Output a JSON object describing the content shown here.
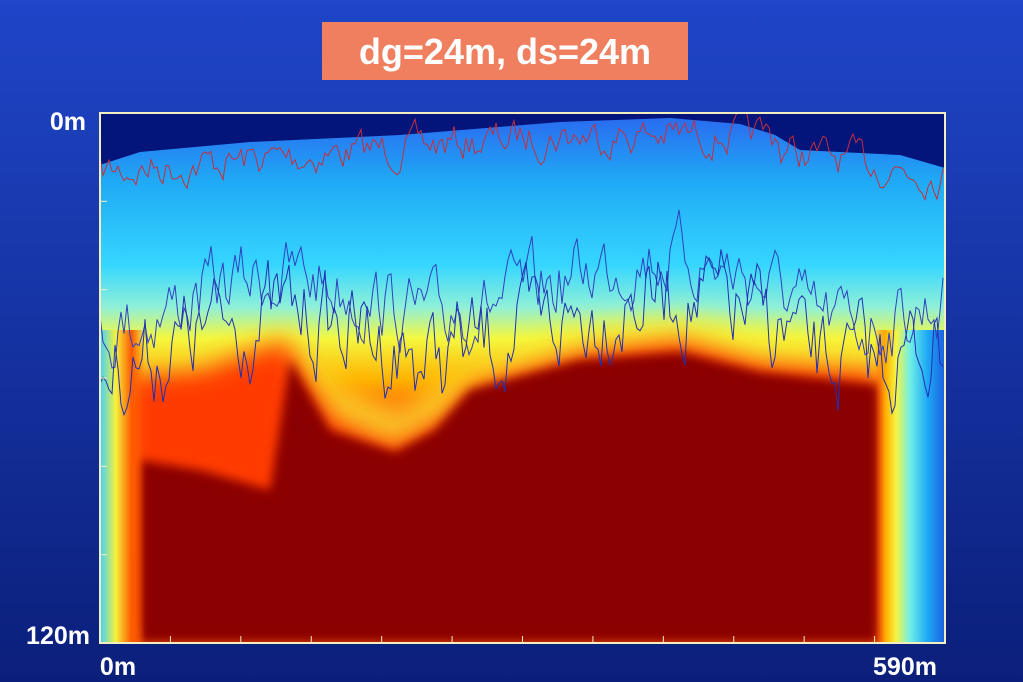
{
  "header": {
    "title": "dg=24m, ds=24m"
  },
  "axes": {
    "depth_top": "0m",
    "depth_bottom": "120m",
    "distance_left": "0m",
    "distance_right": "590m"
  }
}
